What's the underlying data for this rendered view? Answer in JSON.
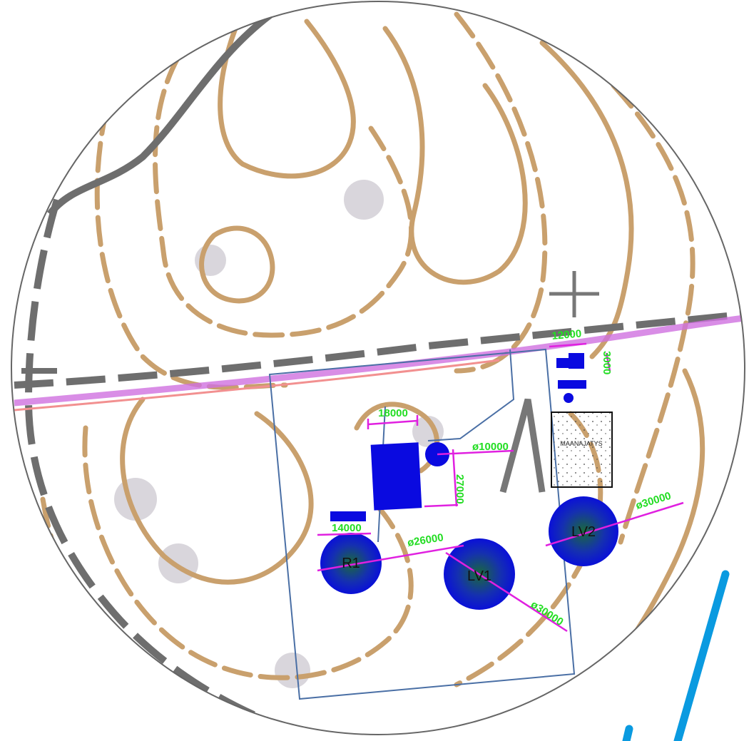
{
  "labels": {
    "dim_top_right_width": "12000",
    "dim_top_right_height": "3000",
    "dim_building_width": "18000",
    "dim_small_tank": "ø10000",
    "dim_building_height": "27000",
    "dim_left_width": "14000",
    "dim_r1": "ø26000",
    "dim_lv2": "ø30000",
    "dim_lv1": "ø30000",
    "tank_r1": "R1",
    "tank_lv1": "LV1",
    "tank_lv2": "LV2",
    "fill_area": "MAANAJATYS"
  }
}
